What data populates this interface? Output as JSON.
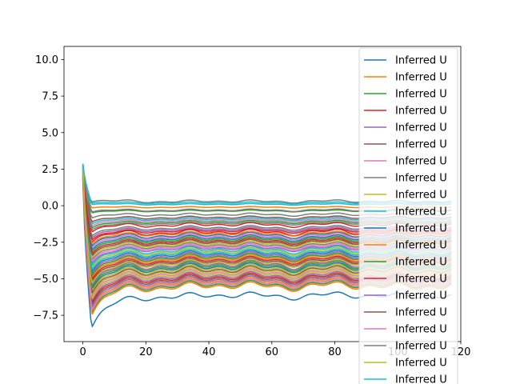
{
  "chart_data": {
    "type": "line",
    "title": "",
    "xlabel": "",
    "ylabel": "",
    "xlim": [
      -6,
      120
    ],
    "ylim": [
      -9.3,
      10.9
    ],
    "xticks": [
      0,
      20,
      40,
      60,
      80,
      100,
      120
    ],
    "yticks": [
      -7.5,
      -5.0,
      -2.5,
      0.0,
      2.5,
      5.0,
      7.5,
      10.0
    ],
    "xtick_labels": [
      "0",
      "20",
      "40",
      "60",
      "80",
      "100",
      "120"
    ],
    "ytick_labels": [
      "−7.5",
      "−5.0",
      "−2.5",
      "0.0",
      "2.5",
      "5.0",
      "7.5",
      "10.0"
    ],
    "grid": false,
    "legend_position": "upper-right",
    "series_count": 60,
    "series": [
      {
        "name": "Inferred U",
        "color": "#1f77b4",
        "offset": -6.15,
        "amp": 0.25
      },
      {
        "name": "Inferred U",
        "color": "#ff7f0e",
        "offset": -5.2,
        "amp": 0.3
      },
      {
        "name": "Inferred U",
        "color": "#2ca02c",
        "offset": -0.35,
        "amp": 0.06
      },
      {
        "name": "Inferred U",
        "color": "#d62728",
        "offset": -1.8,
        "amp": 0.2
      },
      {
        "name": "Inferred U",
        "color": "#9467bd",
        "offset": -4.8,
        "amp": 0.3
      },
      {
        "name": "Inferred U",
        "color": "#8c564b",
        "offset": -2.5,
        "amp": 0.2
      },
      {
        "name": "Inferred U",
        "color": "#e377c2",
        "offset": -3.5,
        "amp": 0.25
      },
      {
        "name": "Inferred U",
        "color": "#7f7f7f",
        "offset": 0.3,
        "amp": 0.1
      },
      {
        "name": "Inferred U",
        "color": "#bcbd22",
        "offset": -3.1,
        "amp": 0.25
      },
      {
        "name": "Inferred U",
        "color": "#17becf",
        "offset": -0.9,
        "amp": 0.1
      },
      {
        "name": "Inferred U",
        "color": "#1f77b4",
        "offset": -4.2,
        "amp": 0.3
      },
      {
        "name": "Inferred U",
        "color": "#ff7f0e",
        "offset": -0.1,
        "amp": 0.05
      },
      {
        "name": "Inferred U",
        "color": "#2ca02c",
        "offset": -5.4,
        "amp": 0.3
      },
      {
        "name": "Inferred U",
        "color": "#d62728",
        "offset": -1.3,
        "amp": 0.15
      },
      {
        "name": "Inferred U",
        "color": "#9467bd",
        "offset": -2.9,
        "amp": 0.2
      },
      {
        "name": "Inferred U",
        "color": "#8c564b",
        "offset": -3.8,
        "amp": 0.25
      },
      {
        "name": "Inferred U",
        "color": "#e377c2",
        "offset": -2.1,
        "amp": 0.2
      },
      {
        "name": "Inferred U",
        "color": "#7f7f7f",
        "offset": -0.6,
        "amp": 0.1
      },
      {
        "name": "Inferred U",
        "color": "#bcbd22",
        "offset": -4.5,
        "amp": 0.3
      },
      {
        "name": "Inferred U",
        "color": "#17becf",
        "offset": 0.1,
        "amp": 0.05
      },
      {
        "name": "Inferred U",
        "color": "#1f77b4",
        "offset": -3.3,
        "amp": 0.25
      },
      {
        "name": "Inferred U",
        "color": "#ff7f0e",
        "offset": -4.0,
        "amp": 0.3
      },
      {
        "name": "Inferred U",
        "color": "#2ca02c",
        "offset": -2.3,
        "amp": 0.2
      },
      {
        "name": "Inferred U",
        "color": "#d62728",
        "offset": -4.9,
        "amp": 0.3
      },
      {
        "name": "Inferred U",
        "color": "#9467bd",
        "offset": -1.6,
        "amp": 0.15
      },
      {
        "name": "Inferred U",
        "color": "#8c564b",
        "offset": -5.0,
        "amp": 0.3
      },
      {
        "name": "Inferred U",
        "color": "#e377c2",
        "offset": -1.0,
        "amp": 0.1
      },
      {
        "name": "Inferred U",
        "color": "#7f7f7f",
        "offset": -2.7,
        "amp": 0.2
      },
      {
        "name": "Inferred U",
        "color": "#bcbd22",
        "offset": -4.3,
        "amp": 0.3
      },
      {
        "name": "Inferred U",
        "color": "#17becf",
        "offset": -3.0,
        "amp": 0.25
      },
      {
        "name": "Inferred U",
        "color": "#1f77b4",
        "offset": -2.0,
        "amp": 0.2
      },
      {
        "name": "Inferred U",
        "color": "#ff7f0e",
        "offset": -3.6,
        "amp": 0.25
      },
      {
        "name": "Inferred U",
        "color": "#2ca02c",
        "offset": -1.1,
        "amp": 0.1
      },
      {
        "name": "Inferred U",
        "color": "#d62728",
        "offset": -3.7,
        "amp": 0.25
      },
      {
        "name": "Inferred U",
        "color": "#9467bd",
        "offset": -5.1,
        "amp": 0.3
      },
      {
        "name": "Inferred U",
        "color": "#8c564b",
        "offset": -0.8,
        "amp": 0.1
      },
      {
        "name": "Inferred U",
        "color": "#e377c2",
        "offset": -4.6,
        "amp": 0.3
      },
      {
        "name": "Inferred U",
        "color": "#7f7f7f",
        "offset": -1.5,
        "amp": 0.15
      },
      {
        "name": "Inferred U",
        "color": "#bcbd22",
        "offset": -2.6,
        "amp": 0.2
      },
      {
        "name": "Inferred U",
        "color": "#17becf",
        "offset": -5.3,
        "amp": 0.3
      },
      {
        "name": "Inferred U",
        "color": "#1f77b4",
        "offset": -3.9,
        "amp": 0.25
      },
      {
        "name": "Inferred U",
        "color": "#ff7f0e",
        "offset": -1.9,
        "amp": 0.15
      },
      {
        "name": "Inferred U",
        "color": "#2ca02c",
        "offset": -4.1,
        "amp": 0.3
      },
      {
        "name": "Inferred U",
        "color": "#d62728",
        "offset": -2.4,
        "amp": 0.2
      },
      {
        "name": "Inferred U",
        "color": "#9467bd",
        "offset": -3.4,
        "amp": 0.25
      },
      {
        "name": "Inferred U",
        "color": "#8c564b",
        "offset": -4.4,
        "amp": 0.3
      },
      {
        "name": "Inferred U",
        "color": "#e377c2",
        "offset": -2.8,
        "amp": 0.2
      },
      {
        "name": "Inferred U",
        "color": "#7f7f7f",
        "offset": -1.2,
        "amp": 0.1
      },
      {
        "name": "Inferred U",
        "color": "#bcbd22",
        "offset": -4.7,
        "amp": 0.3
      },
      {
        "name": "Inferred U",
        "color": "#17becf",
        "offset": -3.2,
        "amp": 0.25
      },
      {
        "name": "Inferred U",
        "color": "#1f77b4",
        "offset": -2.2,
        "amp": 0.2
      },
      {
        "name": "Inferred U",
        "color": "#ff7f0e",
        "offset": -5.5,
        "amp": 0.3
      },
      {
        "name": "Inferred U",
        "color": "#2ca02c",
        "offset": -3.5,
        "amp": 0.25
      },
      {
        "name": "Inferred U",
        "color": "#d62728",
        "offset": -1.7,
        "amp": 0.15
      },
      {
        "name": "Inferred U",
        "color": "#9467bd",
        "offset": -4.0,
        "amp": 0.3
      },
      {
        "name": "Inferred U",
        "color": "#8c564b",
        "offset": -2.5,
        "amp": 0.2
      },
      {
        "name": "Inferred U",
        "color": "#e377c2",
        "offset": -5.3,
        "amp": 0.3
      },
      {
        "name": "Inferred U",
        "color": "#7f7f7f",
        "offset": -0.3,
        "amp": 0.08
      },
      {
        "name": "Inferred U",
        "color": "#bcbd22",
        "offset": -3.9,
        "amp": 0.25
      },
      {
        "name": "Inferred U",
        "color": "#17becf",
        "offset": 0.2,
        "amp": 0.06
      }
    ],
    "legend_entries": [
      {
        "label": "Inferred U",
        "color": "#1f77b4"
      },
      {
        "label": "Inferred U",
        "color": "#ff7f0e"
      },
      {
        "label": "Inferred U",
        "color": "#2ca02c"
      },
      {
        "label": "Inferred U",
        "color": "#d62728"
      },
      {
        "label": "Inferred U",
        "color": "#9467bd"
      },
      {
        "label": "Inferred U",
        "color": "#8c564b"
      },
      {
        "label": "Inferred U",
        "color": "#e377c2"
      },
      {
        "label": "Inferred U",
        "color": "#7f7f7f"
      },
      {
        "label": "Inferred U",
        "color": "#bcbd22"
      },
      {
        "label": "Inferred U",
        "color": "#17becf"
      },
      {
        "label": "Inferred U",
        "color": "#1f77b4"
      },
      {
        "label": "Inferred U",
        "color": "#ff7f0e"
      },
      {
        "label": "Inferred U",
        "color": "#2ca02c"
      },
      {
        "label": "Inferred U",
        "color": "#d62728"
      },
      {
        "label": "Inferred U",
        "color": "#9467bd"
      },
      {
        "label": "Inferred U",
        "color": "#8c564b"
      },
      {
        "label": "Inferred U",
        "color": "#e377c2"
      },
      {
        "label": "Inferred U",
        "color": "#7f7f7f"
      },
      {
        "label": "Inferred U",
        "color": "#bcbd22"
      },
      {
        "label": "Inferred U",
        "color": "#17becf"
      }
    ]
  }
}
